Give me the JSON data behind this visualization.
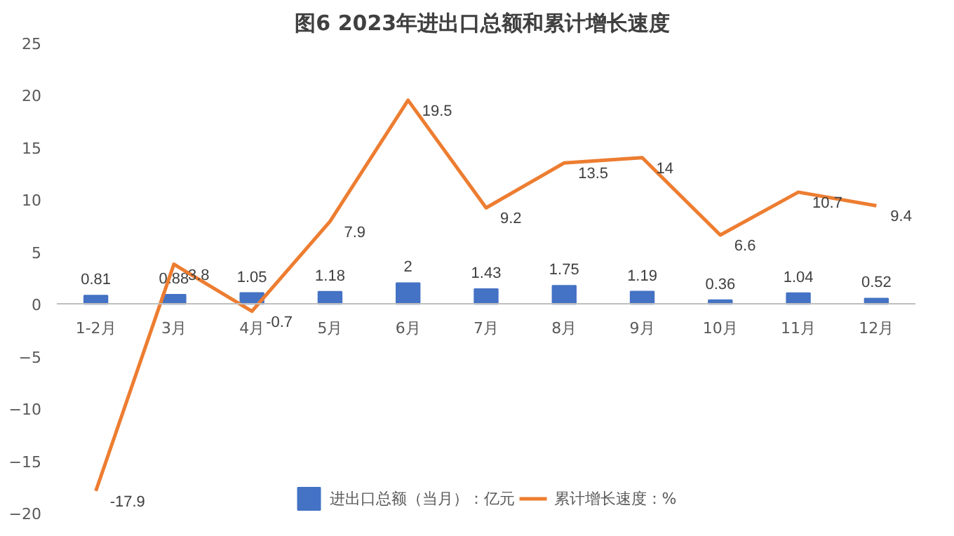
{
  "chart_data": {
    "type": "bar",
    "title": "图6  2023年进出口总额和累计增长速度",
    "categories": [
      "1-2月",
      "3月",
      "4月",
      "5月",
      "6月",
      "7月",
      "8月",
      "9月",
      "10月",
      "11月",
      "12月"
    ],
    "series": [
      {
        "name": "进出口总额（当月）：亿元",
        "color": "#4472c4",
        "values": [
          0.81,
          0.88,
          1.05,
          1.18,
          2,
          1.43,
          1.75,
          1.19,
          0.36,
          1.04,
          0.52
        ]
      },
      {
        "name": "累计增长速度：%",
        "type": "line",
        "color": "#ed7d31",
        "values": [
          -17.9,
          3.8,
          -0.7,
          7.9,
          19.5,
          9.2,
          13.5,
          14,
          6.6,
          10.7,
          9.4
        ]
      }
    ],
    "ylim": [
      -20,
      25
    ],
    "yticks": [
      -20,
      -15,
      -10,
      -5,
      0,
      5,
      10,
      15,
      20,
      25
    ],
    "grid": false,
    "legend": "bottom",
    "data_labels": true
  }
}
